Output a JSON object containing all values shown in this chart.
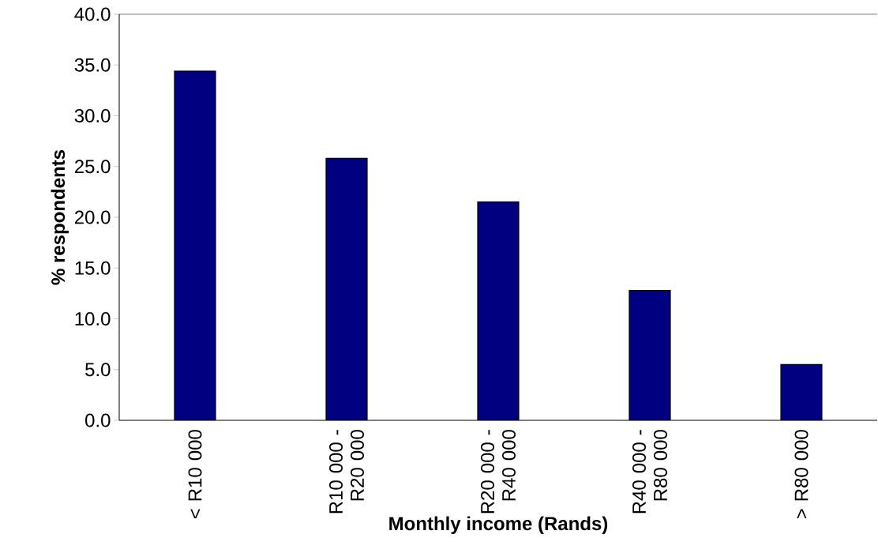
{
  "chart_data": {
    "type": "bar",
    "xlabel": "Monthly income (Rands)",
    "ylabel": "% respondents",
    "categories": [
      "< R10 000",
      "R10 000 - R20 000",
      "R20 000 - R40 000",
      "R40 000 - R80 000",
      "> R80 000"
    ],
    "values": [
      34.4,
      25.8,
      21.5,
      12.8,
      5.5
    ],
    "color": "#000080",
    "ylim": [
      0,
      40
    ],
    "yticks": [
      {
        "value": 0,
        "label": "0.0"
      },
      {
        "value": 5,
        "label": "5.0"
      },
      {
        "value": 10,
        "label": "10.0"
      },
      {
        "value": 15,
        "label": "15.0"
      },
      {
        "value": 20,
        "label": "20.0"
      },
      {
        "value": 25,
        "label": "25.0"
      },
      {
        "value": 30,
        "label": "30.0"
      },
      {
        "value": 35,
        "label": "35.0"
      },
      {
        "value": 40,
        "label": "40.0"
      }
    ],
    "grid": false
  }
}
